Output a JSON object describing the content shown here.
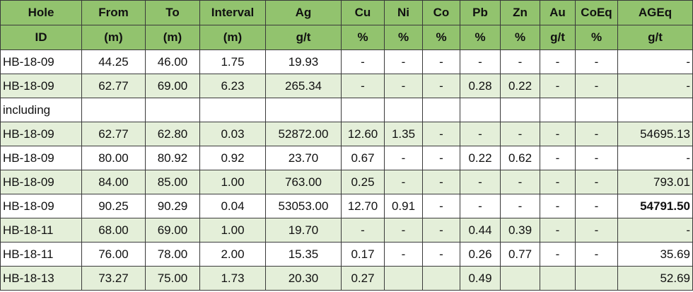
{
  "table": {
    "header": [
      [
        "Hole",
        "From",
        "To",
        "Interval",
        "Ag",
        "Cu",
        "Ni",
        "Co",
        "Pb",
        "Zn",
        "Au",
        "CoEq",
        "AGEq"
      ],
      [
        "ID",
        "(m)",
        "(m)",
        "(m)",
        "g/t",
        "%",
        "%",
        "%",
        "%",
        "%",
        "g/t",
        "%",
        "g/t"
      ]
    ],
    "rows": [
      [
        "HB-18-09",
        "44.25",
        "46.00",
        "1.75",
        "19.93",
        "-",
        "-",
        "-",
        "-",
        "-",
        "-",
        "-",
        "-"
      ],
      [
        "HB-18-09",
        "62.77",
        "69.00",
        "6.23",
        "265.34",
        "-",
        "-",
        "-",
        "0.28",
        "0.22",
        "-",
        "-",
        "-"
      ],
      [
        "including",
        null,
        null,
        null,
        null,
        null,
        null,
        null,
        null,
        null,
        null,
        null,
        null
      ],
      [
        "HB-18-09",
        "62.77",
        "62.80",
        "0.03",
        "52872.00",
        "12.60",
        "1.35",
        "-",
        "-",
        "-",
        "-",
        "-",
        "54695.13"
      ],
      [
        "HB-18-09",
        "80.00",
        "80.92",
        "0.92",
        "23.70",
        "0.67",
        "-",
        "-",
        "0.22",
        "0.62",
        "-",
        "-",
        "-"
      ],
      [
        "HB-18-09",
        "84.00",
        "85.00",
        "1.00",
        "763.00",
        "0.25",
        "-",
        "-",
        "-",
        "-",
        "-",
        "-",
        "793.01"
      ],
      [
        "HB-18-09",
        "90.25",
        "90.29",
        "0.04",
        "53053.00",
        "12.70",
        "0.91",
        "-",
        "-",
        "-",
        "-",
        "-",
        "54791.50"
      ],
      [
        "HB-18-11",
        "68.00",
        "69.00",
        "1.00",
        "19.70",
        "-",
        "-",
        "-",
        "0.44",
        "0.39",
        "-",
        "-",
        "-"
      ],
      [
        "HB-18-11",
        "76.00",
        "78.00",
        "2.00",
        "15.35",
        "0.17",
        "-",
        "-",
        "0.26",
        "0.77",
        "-",
        "-",
        "35.69"
      ],
      [
        "HB-18-13",
        "73.27",
        "75.00",
        "1.73",
        "20.30",
        "0.27",
        null,
        null,
        "0.49",
        null,
        null,
        null,
        "52.69"
      ]
    ]
  }
}
